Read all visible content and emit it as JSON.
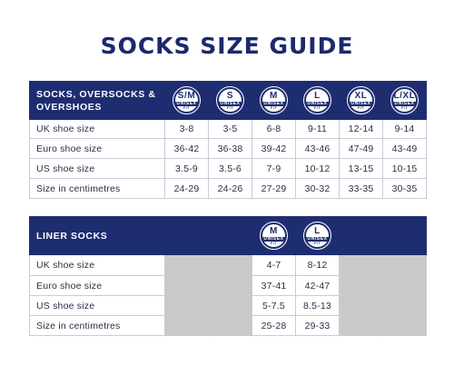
{
  "title": "SOCKS SIZE GUIDE",
  "badge_unisex": "UNISEX",
  "badge_fit": "FIT",
  "table1": {
    "header_label": "SOCKS, OVERSOCKS & OVERSHOES",
    "sizes": [
      "S/M",
      "S",
      "M",
      "L",
      "XL",
      "L/XL"
    ],
    "rows": [
      {
        "label": "UK shoe size",
        "values": [
          "3-8",
          "3-5",
          "6-8",
          "9-11",
          "12-14",
          "9-14"
        ]
      },
      {
        "label": "Euro shoe size",
        "values": [
          "36-42",
          "36-38",
          "39-42",
          "43-46",
          "47-49",
          "43-49"
        ]
      },
      {
        "label": "US shoe size",
        "values": [
          "3.5-9",
          "3.5-6",
          "7-9",
          "10-12",
          "13-15",
          "10-15"
        ]
      },
      {
        "label": "Size in centimetres",
        "values": [
          "24-29",
          "24-26",
          "27-29",
          "30-32",
          "33-35",
          "30-35"
        ]
      }
    ]
  },
  "table2": {
    "header_label": "LINER SOCKS",
    "sizes": [
      "M",
      "L"
    ],
    "rows": [
      {
        "label": "UK shoe size",
        "values": [
          "4-7",
          "8-12"
        ]
      },
      {
        "label": "Euro shoe size",
        "values": [
          "37-41",
          "42-47"
        ]
      },
      {
        "label": "US shoe size",
        "values": [
          "5-7.5",
          "8.5-13"
        ]
      },
      {
        "label": "Size in centimetres",
        "values": [
          "25-28",
          "29-33"
        ]
      }
    ]
  },
  "colors": {
    "navy": "#1e2d70",
    "gray_cell": "#c9c9c9",
    "border": "#c8ccd8"
  }
}
